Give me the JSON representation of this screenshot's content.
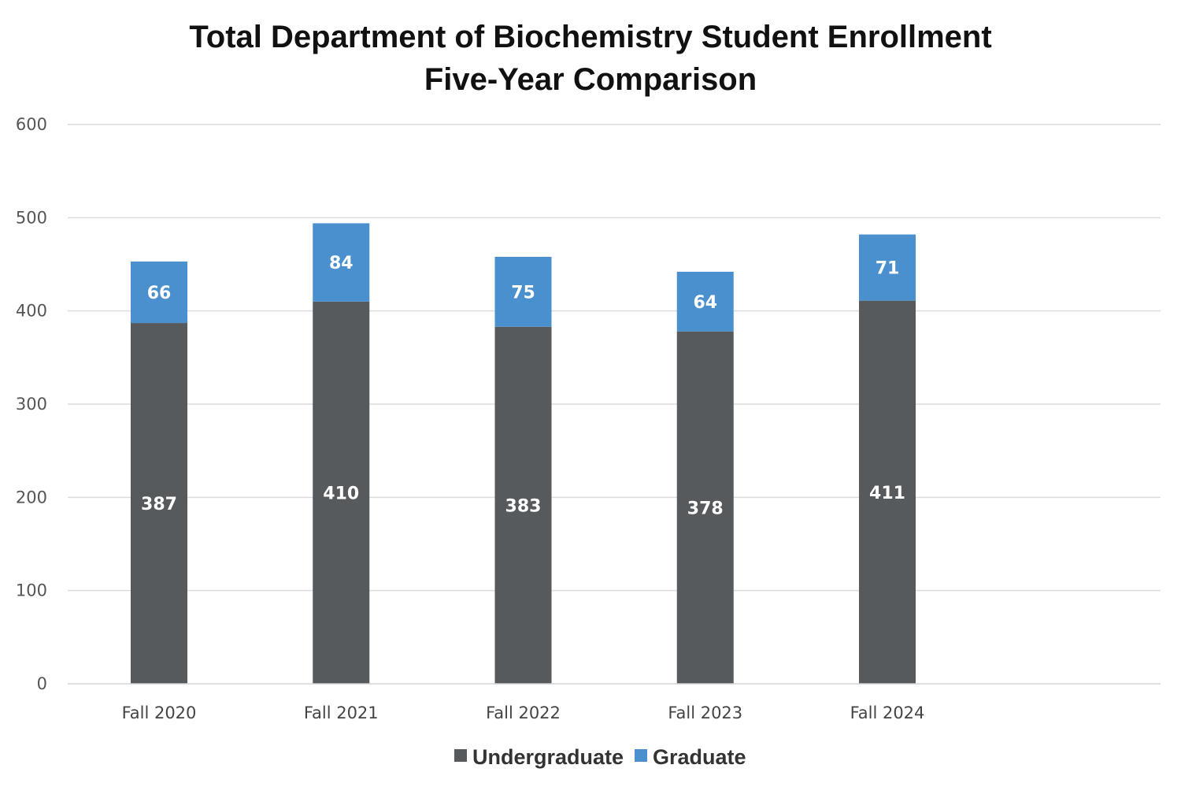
{
  "chart_data": {
    "type": "bar",
    "stacked": true,
    "title": [
      "Total Department of Biochemistry Student Enrollment",
      "Five-Year Comparison"
    ],
    "categories": [
      "Fall 2020",
      "Fall 2021",
      "Fall 2022",
      "Fall 2023",
      "Fall 2024"
    ],
    "series": [
      {
        "name": "Undergraduate",
        "values": [
          387,
          410,
          383,
          378,
          411
        ],
        "color": "#575A5C"
      },
      {
        "name": "Graduate",
        "values": [
          66,
          84,
          75,
          64,
          71
        ],
        "color": "#4A90CE"
      }
    ],
    "ylim": [
      0,
      600
    ],
    "yticks": [
      0,
      100,
      200,
      300,
      400,
      500,
      600
    ],
    "grid": true,
    "legend": "bottom"
  }
}
